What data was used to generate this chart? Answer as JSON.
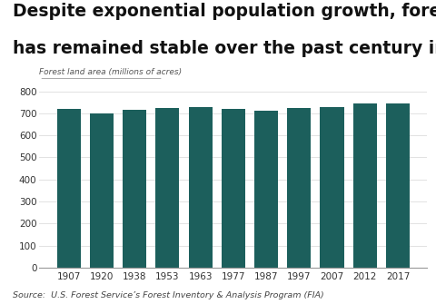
{
  "title_line1": "Despite exponential population growth, forest land area",
  "title_line2": "has remained stable over the past century in the U.S.",
  "ylabel": "Forest land area (millions of acres)",
  "source": "Source:  U.S. Forest Service’s Forest Inventory & Analysis Program (FIA)",
  "categories": [
    "1907",
    "1920",
    "1938",
    "1953",
    "1963",
    "1977",
    "1987",
    "1997",
    "2007",
    "2012",
    "2017"
  ],
  "values": [
    720,
    700,
    717,
    723,
    730,
    720,
    710,
    722,
    730,
    745,
    745
  ],
  "bar_color": "#1c5f5c",
  "background_color": "#ffffff",
  "ylim": [
    0,
    800
  ],
  "yticks": [
    0,
    100,
    200,
    300,
    400,
    500,
    600,
    700,
    800
  ],
  "title_fontsize": 13.5,
  "ylabel_fontsize": 6.5,
  "source_fontsize": 6.8,
  "tick_fontsize": 7.5
}
